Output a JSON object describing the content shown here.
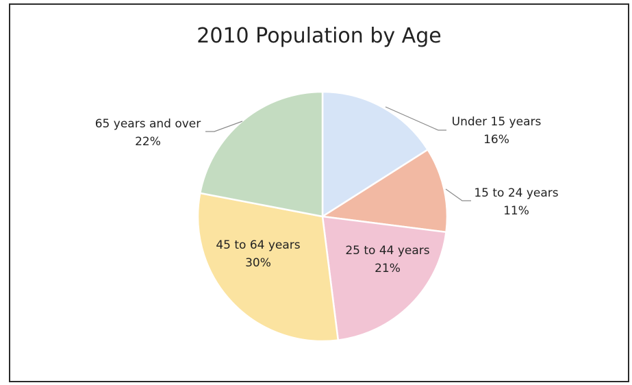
{
  "chart_data": {
    "type": "pie",
    "title": "2010 Population by Age",
    "slices": [
      {
        "label": "Under 15 years",
        "value": 16,
        "value_label": "16%",
        "color": "#d6e4f7"
      },
      {
        "label": "15 to 24 years",
        "value": 11,
        "value_label": "11%",
        "color": "#f2b9a3"
      },
      {
        "label": "25 to 44 years",
        "value": 21,
        "value_label": "21%",
        "color": "#f2c4d4"
      },
      {
        "label": "45 to 64 years",
        "value": 30,
        "value_label": "30%",
        "color": "#fbe3a0"
      },
      {
        "label": "65 years and over",
        "value": 22,
        "value_label": "22%",
        "color": "#c4dcc1"
      }
    ],
    "start_angle": "12 o'clock",
    "direction": "clockwise",
    "legend": "none"
  }
}
